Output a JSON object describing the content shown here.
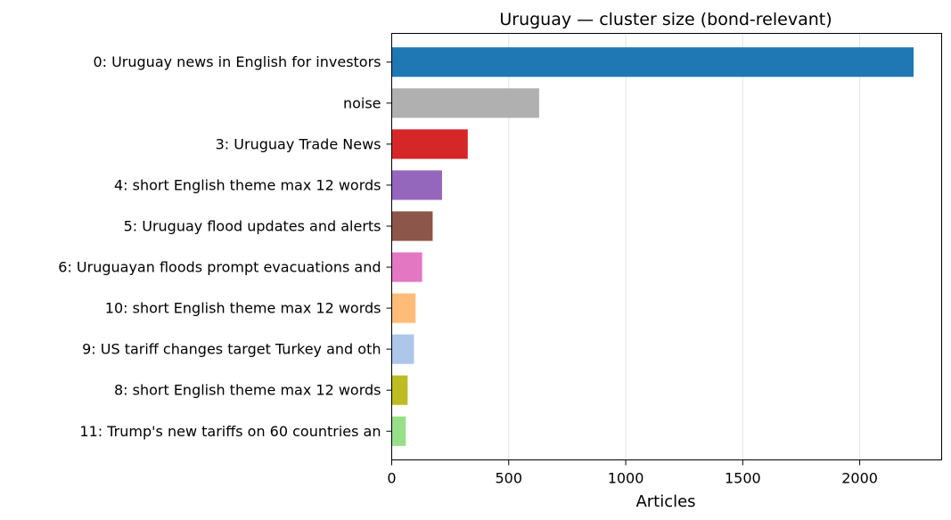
{
  "chart_data": {
    "type": "bar",
    "orientation": "horizontal",
    "title": "Uruguay — cluster size (bond-relevant)",
    "xlabel": "Articles",
    "ylabel": "",
    "xlim": [
      0,
      2350
    ],
    "xticks": [
      0,
      500,
      1000,
      1500,
      2000
    ],
    "grid": "x",
    "categories": [
      "0: Uruguay news in English for investors",
      "noise",
      "3: Uruguay Trade News",
      "4: short English theme max 12 words",
      "5: Uruguay flood updates and alerts",
      "6: Uruguayan floods prompt evacuations and",
      "10: short English theme max 12 words",
      "9: US tariff changes target Turkey and oth",
      "8: short English theme max 12 words",
      "11: Trump's new tariffs on 60 countries an"
    ],
    "values": [
      2230,
      630,
      325,
      215,
      175,
      130,
      102,
      95,
      68,
      60
    ],
    "colors": [
      "#1f77b4",
      "#b0b0b0",
      "#d62728",
      "#9467bd",
      "#8c564b",
      "#e377c2",
      "#ffbb78",
      "#aec7e8",
      "#bcbd22",
      "#98df8a"
    ]
  }
}
